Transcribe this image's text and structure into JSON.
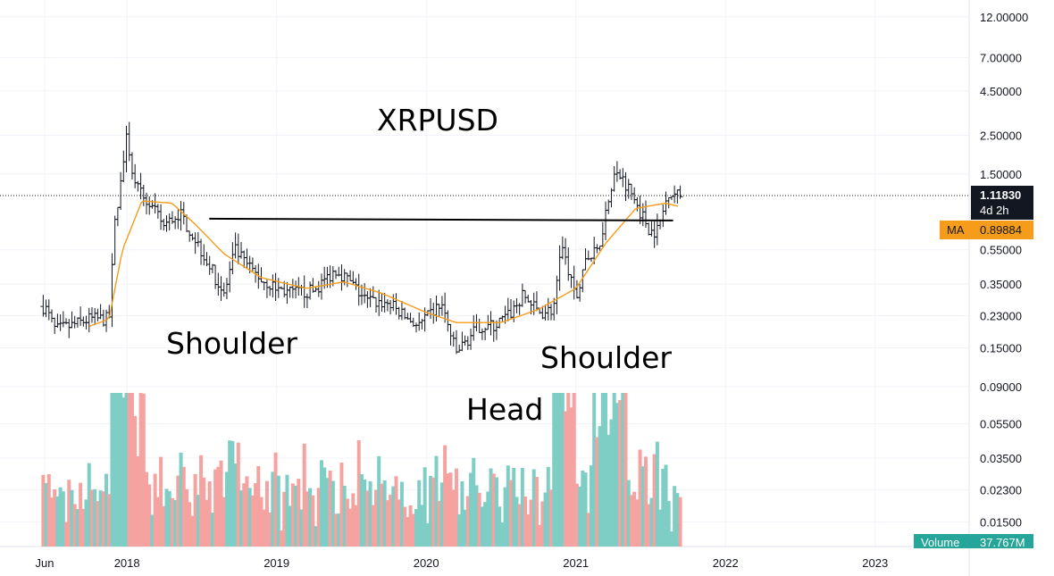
{
  "chart_data": {
    "type": "ohlc",
    "title": "XRPUSD",
    "y_scale": "log",
    "ylim": [
      0.0125,
      13.0
    ],
    "y_ticks": [
      "12.00000",
      "7.00000",
      "4.50000",
      "2.50000",
      "1.50000",
      "0.55000",
      "0.35000",
      "0.23000",
      "0.15000",
      "0.09000",
      "0.05500",
      "0.03500",
      "0.02300",
      "0.01500"
    ],
    "x_ticks": [
      "Jun",
      "2018",
      "2019",
      "2020",
      "2021",
      "2022",
      "2023"
    ],
    "last_price": "1.11830",
    "countdown": "4d 2h",
    "ma": {
      "name": "MA",
      "value": "0.89884"
    },
    "volume": {
      "name": "Volume",
      "value": "37.767M"
    },
    "annotations": {
      "left_shoulder": "Shoulder",
      "head": "Head",
      "right_shoulder": "Shoulder"
    },
    "neckline": [
      [
        2018.55,
        0.83
      ],
      [
        2021.65,
        0.81
      ]
    ],
    "price_keypoints": [
      [
        2017.45,
        0.26
      ],
      [
        2017.52,
        0.19
      ],
      [
        2017.62,
        0.2
      ],
      [
        2017.75,
        0.22
      ],
      [
        2017.88,
        0.22
      ],
      [
        2017.92,
        0.8
      ],
      [
        2018.0,
        2.5
      ],
      [
        2018.05,
        1.3
      ],
      [
        2018.15,
        1.0
      ],
      [
        2018.25,
        0.75
      ],
      [
        2018.35,
        0.9
      ],
      [
        2018.45,
        0.65
      ],
      [
        2018.55,
        0.45
      ],
      [
        2018.65,
        0.3
      ],
      [
        2018.72,
        0.55
      ],
      [
        2018.8,
        0.45
      ],
      [
        2018.9,
        0.37
      ],
      [
        2019.0,
        0.33
      ],
      [
        2019.1,
        0.31
      ],
      [
        2019.25,
        0.32
      ],
      [
        2019.4,
        0.43
      ],
      [
        2019.5,
        0.35
      ],
      [
        2019.6,
        0.28
      ],
      [
        2019.75,
        0.27
      ],
      [
        2019.85,
        0.23
      ],
      [
        2019.95,
        0.2
      ],
      [
        2020.1,
        0.27
      ],
      [
        2020.2,
        0.14
      ],
      [
        2020.35,
        0.2
      ],
      [
        2020.45,
        0.2
      ],
      [
        2020.55,
        0.23
      ],
      [
        2020.65,
        0.3
      ],
      [
        2020.75,
        0.24
      ],
      [
        2020.85,
        0.25
      ],
      [
        2020.9,
        0.6
      ],
      [
        2021.0,
        0.28
      ],
      [
        2021.05,
        0.45
      ],
      [
        2021.15,
        0.55
      ],
      [
        2021.25,
        1.5
      ],
      [
        2021.32,
        1.4
      ],
      [
        2021.42,
        0.95
      ],
      [
        2021.5,
        0.7
      ],
      [
        2021.55,
        0.72
      ],
      [
        2021.62,
        1.2
      ],
      [
        2021.7,
        1.12
      ]
    ],
    "ma_keypoints": [
      [
        2017.75,
        0.2
      ],
      [
        2017.88,
        0.22
      ],
      [
        2017.97,
        0.55
      ],
      [
        2018.1,
        1.05
      ],
      [
        2018.3,
        1.02
      ],
      [
        2018.45,
        0.78
      ],
      [
        2018.65,
        0.52
      ],
      [
        2018.9,
        0.38
      ],
      [
        2019.2,
        0.33
      ],
      [
        2019.45,
        0.36
      ],
      [
        2019.7,
        0.31
      ],
      [
        2020.0,
        0.24
      ],
      [
        2020.2,
        0.21
      ],
      [
        2020.5,
        0.21
      ],
      [
        2020.75,
        0.25
      ],
      [
        2021.0,
        0.33
      ],
      [
        2021.2,
        0.6
      ],
      [
        2021.4,
        0.95
      ],
      [
        2021.6,
        1.02
      ],
      [
        2021.7,
        0.97
      ]
    ]
  },
  "colors": {
    "ma": "#f59c1a",
    "vol_up": "#7ecec5",
    "vol_down": "#f5a3a1",
    "bar": "#131722",
    "neckline": "#000000"
  }
}
